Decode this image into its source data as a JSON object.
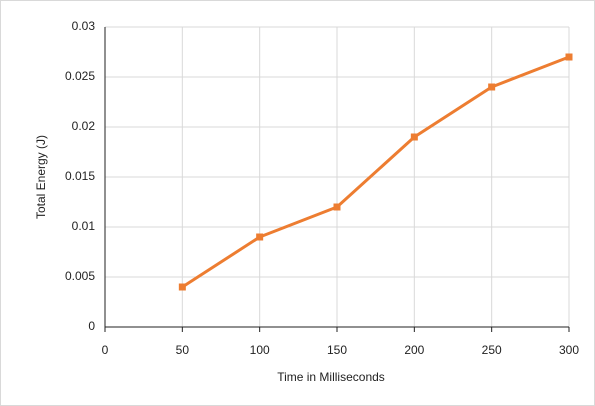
{
  "chart_data": {
    "type": "line",
    "x": [
      50,
      100,
      150,
      200,
      250,
      300
    ],
    "series": [
      {
        "color": "#ed7d31",
        "values": [
          0.004,
          0.009,
          0.012,
          0.019,
          0.024,
          0.027
        ]
      }
    ],
    "xlabel": "Time in Milliseconds",
    "ylabel": "Total Energy (J)",
    "xlim": [
      0,
      300
    ],
    "xticks": [
      0,
      50,
      100,
      150,
      200,
      250,
      300
    ],
    "ylim": [
      0,
      0.03
    ],
    "yticks": [
      0,
      0.005,
      0.01,
      0.015,
      0.02,
      0.025,
      0.03
    ],
    "grid": true,
    "marker": "square"
  }
}
